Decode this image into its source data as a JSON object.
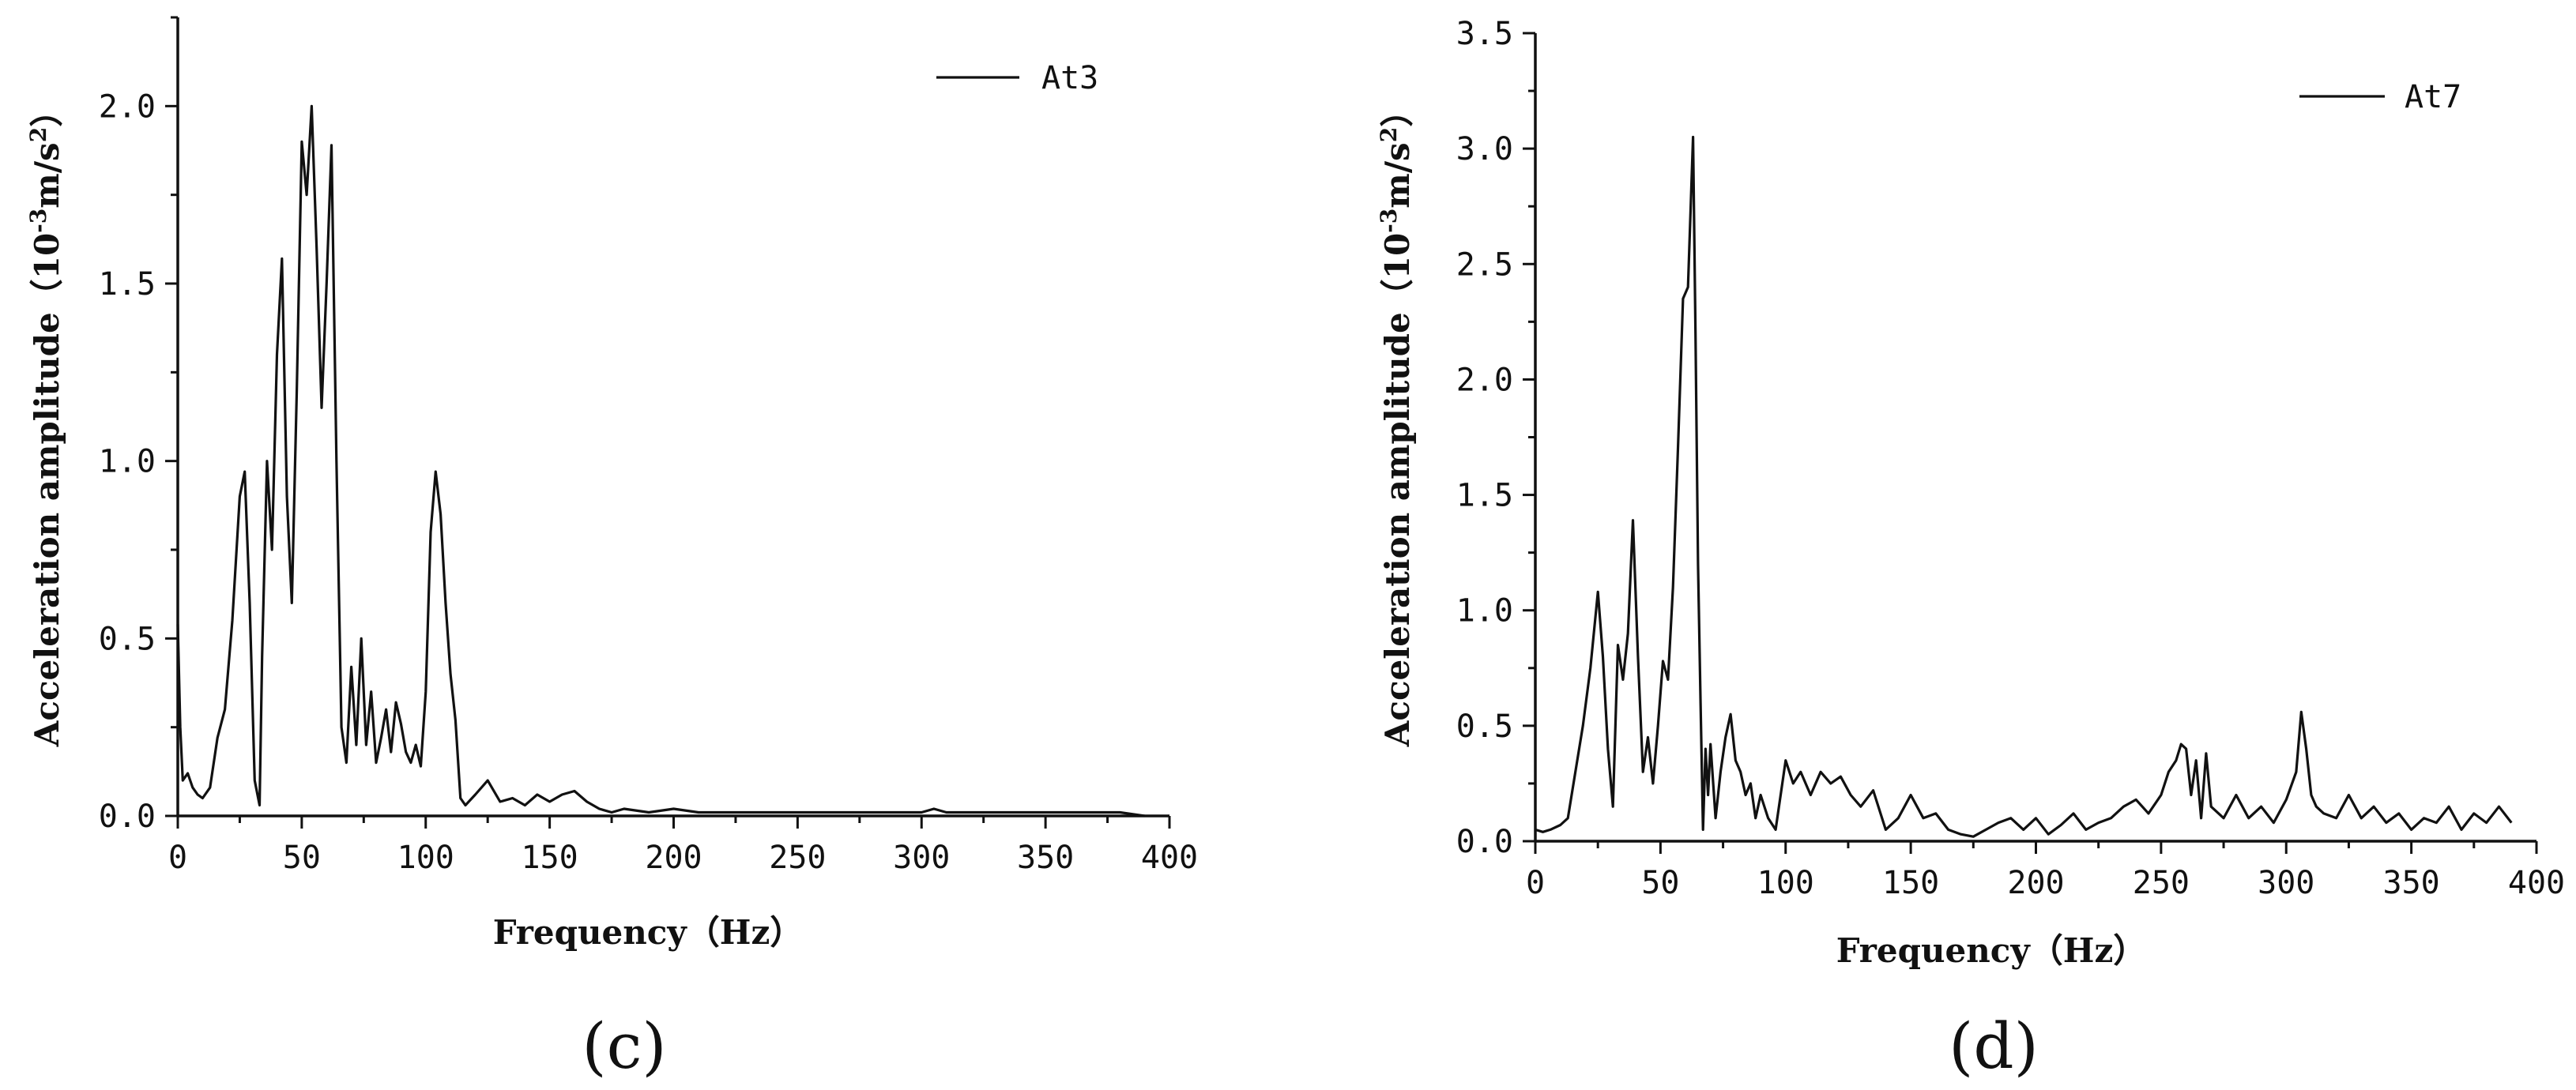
{
  "chart_data": [
    {
      "type": "line",
      "panel_label": "(c)",
      "xlabel": "Frequency（Hz）",
      "ylabel": "Acceleration amplitude（10",
      "ylabel_exp": "-3",
      "ylabel_unit": "m/s",
      "ylabel_sq": "2",
      "ylabel_close": "）",
      "xlim": [
        0,
        400
      ],
      "ylim": [
        0,
        2.25
      ],
      "xticks": [
        "0",
        "50",
        "100",
        "150",
        "200",
        "250",
        "300",
        "350",
        "400"
      ],
      "yticks": [
        "0.0",
        "0.5",
        "1.0",
        "1.5",
        "2.0"
      ],
      "grid": false,
      "legend_position": "top-right",
      "series": [
        {
          "name": "At3",
          "x": [
            0,
            1,
            2,
            4,
            6,
            8,
            10,
            13,
            16,
            19,
            22,
            25,
            27,
            29,
            31,
            33,
            34,
            36,
            38,
            40,
            42,
            44,
            46,
            48,
            50,
            52,
            54,
            56,
            58,
            60,
            62,
            64,
            66,
            68,
            70,
            72,
            74,
            76,
            78,
            80,
            82,
            84,
            86,
            88,
            90,
            92,
            94,
            96,
            98,
            100,
            102,
            104,
            106,
            108,
            110,
            112,
            114,
            116,
            120,
            125,
            130,
            135,
            140,
            145,
            150,
            155,
            160,
            165,
            170,
            175,
            180,
            190,
            200,
            210,
            220,
            230,
            240,
            250,
            260,
            270,
            280,
            290,
            300,
            305,
            310,
            320,
            330,
            340,
            350,
            360,
            370,
            380,
            390
          ],
          "values": [
            0.54,
            0.25,
            0.1,
            0.12,
            0.08,
            0.06,
            0.05,
            0.08,
            0.22,
            0.3,
            0.55,
            0.9,
            0.97,
            0.6,
            0.1,
            0.03,
            0.45,
            1.0,
            0.75,
            1.3,
            1.57,
            0.9,
            0.6,
            1.2,
            1.9,
            1.75,
            2.0,
            1.6,
            1.15,
            1.5,
            1.89,
            1.0,
            0.25,
            0.15,
            0.42,
            0.2,
            0.5,
            0.2,
            0.35,
            0.15,
            0.22,
            0.3,
            0.18,
            0.32,
            0.26,
            0.18,
            0.15,
            0.2,
            0.14,
            0.35,
            0.8,
            0.97,
            0.85,
            0.6,
            0.4,
            0.27,
            0.05,
            0.03,
            0.06,
            0.1,
            0.04,
            0.05,
            0.03,
            0.06,
            0.04,
            0.06,
            0.07,
            0.04,
            0.02,
            0.01,
            0.02,
            0.01,
            0.02,
            0.01,
            0.01,
            0.01,
            0.01,
            0.01,
            0.01,
            0.01,
            0.01,
            0.01,
            0.01,
            0.02,
            0.01,
            0.01,
            0.01,
            0.01,
            0.01,
            0.01,
            0.01,
            0.01,
            0.0
          ]
        }
      ]
    },
    {
      "type": "line",
      "panel_label": "(d)",
      "xlabel": "Frequency（Hz）",
      "ylabel": "Acceleration amplitude（10",
      "ylabel_exp": "-3",
      "ylabel_unit": "m/s",
      "ylabel_sq": "2",
      "ylabel_close": "）",
      "xlim": [
        0,
        400
      ],
      "ylim": [
        0,
        3.5
      ],
      "xticks": [
        "0",
        "50",
        "100",
        "150",
        "200",
        "250",
        "300",
        "350",
        "400"
      ],
      "yticks": [
        "0.0",
        "0.5",
        "1.0",
        "1.5",
        "2.0",
        "2.5",
        "3.0",
        "3.5"
      ],
      "grid": false,
      "legend_position": "top-right",
      "series": [
        {
          "name": "At7",
          "x": [
            0,
            3,
            6,
            10,
            13,
            16,
            19,
            22,
            25,
            27,
            29,
            31,
            33,
            35,
            37,
            39,
            41,
            43,
            45,
            47,
            49,
            51,
            53,
            55,
            57,
            59,
            61,
            63,
            64,
            65,
            66,
            67,
            68,
            69,
            70,
            72,
            74,
            76,
            78,
            80,
            82,
            84,
            86,
            88,
            90,
            93,
            96,
            100,
            103,
            106,
            110,
            114,
            118,
            122,
            126,
            130,
            135,
            140,
            145,
            150,
            155,
            160,
            165,
            170,
            175,
            180,
            185,
            190,
            195,
            200,
            205,
            210,
            215,
            220,
            225,
            230,
            235,
            240,
            245,
            250,
            253,
            256,
            258,
            260,
            262,
            264,
            266,
            268,
            270,
            275,
            280,
            285,
            290,
            295,
            300,
            304,
            306,
            308,
            310,
            312,
            315,
            320,
            325,
            330,
            335,
            340,
            345,
            350,
            355,
            360,
            365,
            370,
            375,
            380,
            385,
            390
          ],
          "values": [
            0.05,
            0.04,
            0.05,
            0.07,
            0.1,
            0.3,
            0.5,
            0.75,
            1.08,
            0.8,
            0.4,
            0.15,
            0.85,
            0.7,
            0.9,
            1.39,
            0.8,
            0.3,
            0.45,
            0.25,
            0.5,
            0.78,
            0.7,
            1.1,
            1.7,
            2.35,
            2.4,
            3.05,
            2.2,
            1.2,
            0.6,
            0.05,
            0.4,
            0.2,
            0.42,
            0.1,
            0.3,
            0.45,
            0.55,
            0.35,
            0.3,
            0.2,
            0.25,
            0.1,
            0.2,
            0.1,
            0.05,
            0.35,
            0.25,
            0.3,
            0.2,
            0.3,
            0.25,
            0.28,
            0.2,
            0.15,
            0.22,
            0.05,
            0.1,
            0.2,
            0.1,
            0.12,
            0.05,
            0.03,
            0.02,
            0.05,
            0.08,
            0.1,
            0.05,
            0.1,
            0.03,
            0.07,
            0.12,
            0.05,
            0.08,
            0.1,
            0.15,
            0.18,
            0.12,
            0.2,
            0.3,
            0.35,
            0.42,
            0.4,
            0.2,
            0.35,
            0.1,
            0.38,
            0.15,
            0.1,
            0.2,
            0.1,
            0.15,
            0.08,
            0.18,
            0.3,
            0.56,
            0.4,
            0.2,
            0.15,
            0.12,
            0.1,
            0.2,
            0.1,
            0.15,
            0.08,
            0.12,
            0.05,
            0.1,
            0.08,
            0.15,
            0.05,
            0.12,
            0.08,
            0.15,
            0.08
          ]
        }
      ]
    }
  ]
}
